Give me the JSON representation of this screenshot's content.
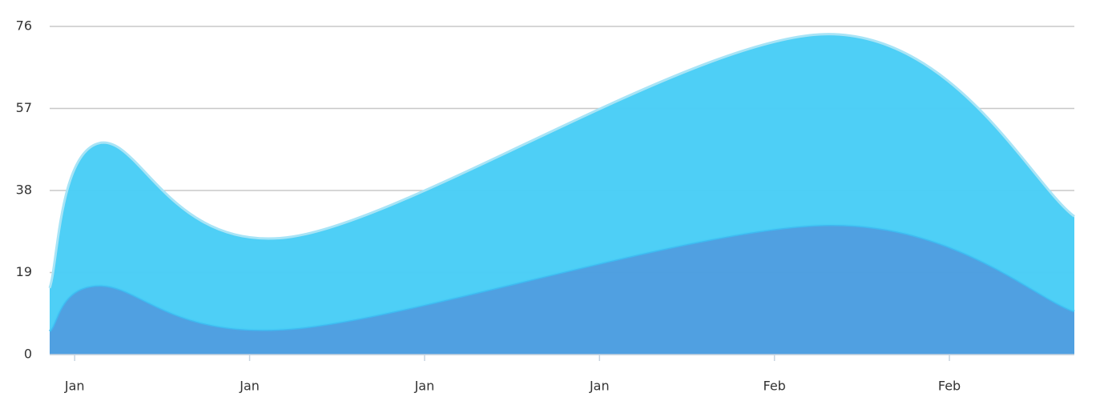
{
  "chart_data": {
    "type": "stacked-area",
    "x": [
      6,
      8,
      15.7,
      37,
      47
    ],
    "xlim": [
      6,
      47
    ],
    "xticks": [
      {
        "value": 7,
        "label": "Jan"
      },
      {
        "value": 14,
        "label": "Jan"
      },
      {
        "value": 21,
        "label": "Jan"
      },
      {
        "value": 28,
        "label": "Jan"
      },
      {
        "value": 35,
        "label": "Feb"
      },
      {
        "value": 42,
        "label": "Feb"
      }
    ],
    "ylim": [
      0,
      76
    ],
    "yticks": [
      0,
      19,
      38,
      57,
      76
    ],
    "grid": true,
    "series": [
      {
        "color": "#4a9de0",
        "values": [
          5.4,
          16,
          6,
          30,
          10
        ]
      },
      {
        "color": "#48cdf6",
        "values": [
          10,
          33,
          21.3,
          44.2,
          22
        ]
      }
    ]
  }
}
